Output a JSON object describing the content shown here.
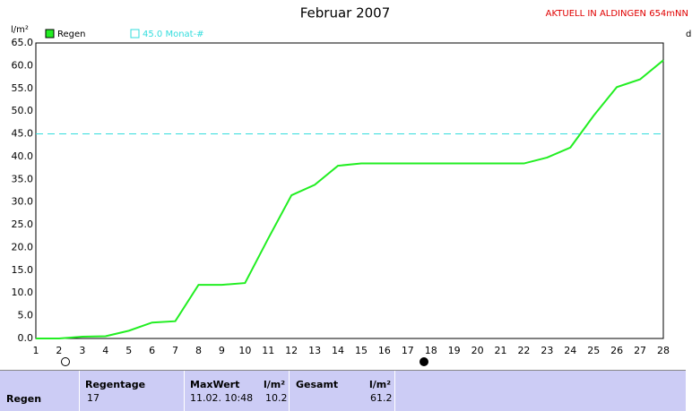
{
  "chart_data": {
    "type": "line",
    "title": "Februar 2007",
    "ylabel": "l/m²",
    "x": [
      1,
      2,
      3,
      4,
      5,
      6,
      7,
      8,
      9,
      10,
      11,
      12,
      13,
      14,
      15,
      16,
      17,
      18,
      19,
      20,
      21,
      22,
      23,
      24,
      25,
      26,
      27,
      28
    ],
    "series": [
      {
        "name": "Regen",
        "color": "#22ee22",
        "values": [
          0,
          0,
          0.4,
          0.5,
          1.7,
          3.5,
          3.8,
          11.8,
          11.8,
          12.2,
          22,
          31.5,
          33.8,
          38,
          38.5,
          38.5,
          38.5,
          38.5,
          38.5,
          38.5,
          38.5,
          38.5,
          39.8,
          42,
          49,
          55.3,
          57,
          61.2
        ]
      }
    ],
    "reference_line": {
      "value": 45,
      "label": "45.0 Monat-#",
      "color": "#33dddd"
    },
    "xlim": [
      1,
      28
    ],
    "xticks": [
      1,
      2,
      3,
      4,
      5,
      6,
      7,
      8,
      9,
      10,
      11,
      12,
      13,
      14,
      15,
      16,
      17,
      18,
      19,
      20,
      21,
      22,
      23,
      24,
      25,
      26,
      27,
      28
    ],
    "ylim": [
      0,
      65
    ],
    "yticks": [
      {
        "value": 0,
        "label": "0.0"
      },
      {
        "value": 5,
        "label": "5.0"
      },
      {
        "value": 10,
        "label": "10.0"
      },
      {
        "value": 15,
        "label": "15.0"
      },
      {
        "value": 20,
        "label": "20.0"
      },
      {
        "value": 25,
        "label": "25.0"
      },
      {
        "value": 30,
        "label": "30.0"
      },
      {
        "value": 35,
        "label": "35.0"
      },
      {
        "value": 40,
        "label": "40.0"
      },
      {
        "value": 45,
        "label": "45.0"
      },
      {
        "value": 50,
        "label": "50.0"
      },
      {
        "value": 55,
        "label": "55.0"
      },
      {
        "value": 60,
        "label": "60.0"
      },
      {
        "value": 65,
        "label": "65.0"
      }
    ],
    "grid": true
  },
  "header": {
    "station": "AKTUELL IN ALDINGEN 654mNN",
    "side_label": "d"
  },
  "table": {
    "row_label": "Regen",
    "regentage": {
      "title": "Regentage",
      "value": "17"
    },
    "maxwert": {
      "title": "MaxWert",
      "unit": "l/m²",
      "time": "11.02. 10:48",
      "value": "10.2"
    },
    "gesamt": {
      "title": "Gesamt",
      "unit": "l/m²",
      "value": "61.2"
    }
  }
}
